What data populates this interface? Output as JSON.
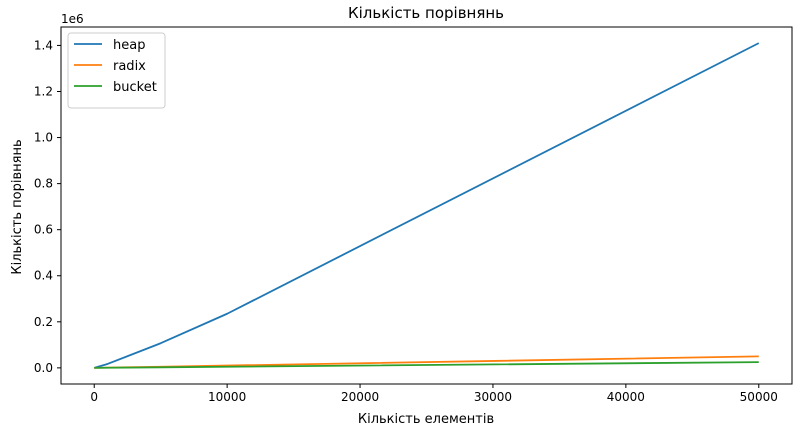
{
  "chart_data": {
    "type": "line",
    "title": "Кількість порівнянь",
    "xlabel": "Кількість елементів",
    "ylabel": "Кількість порівнянь",
    "y_offset_label": "1e6",
    "xlim": [
      -2500,
      52500
    ],
    "ylim": [
      -70000,
      1480000
    ],
    "x_ticks": [
      0,
      10000,
      20000,
      30000,
      40000,
      50000
    ],
    "x_tick_labels": [
      "0",
      "10000",
      "20000",
      "30000",
      "40000",
      "50000"
    ],
    "y_ticks": [
      0,
      200000,
      400000,
      600000,
      800000,
      1000000,
      1200000,
      1400000
    ],
    "y_tick_labels": [
      "0.0",
      "0.2",
      "0.4",
      "0.6",
      "0.8",
      "1.0",
      "1.2",
      "1.4"
    ],
    "grid": false,
    "legend_position": "upper-left",
    "x": [
      0,
      1000,
      5000,
      10000,
      50000
    ],
    "series": [
      {
        "name": "heap",
        "color": "#1f77b4",
        "values": [
          0,
          17000,
          107000,
          235000,
          1410000
        ]
      },
      {
        "name": "radix",
        "color": "#ff7f0e",
        "values": [
          0,
          1000,
          5000,
          10000,
          50000
        ]
      },
      {
        "name": "bucket",
        "color": "#2ca02c",
        "values": [
          0,
          500,
          2500,
          5000,
          25000
        ]
      }
    ]
  }
}
